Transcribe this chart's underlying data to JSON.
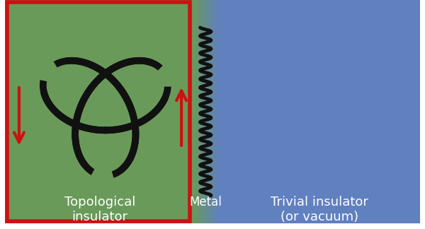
{
  "fig_width": 6.0,
  "fig_height": 3.24,
  "dpi": 100,
  "bg_color": "#ffffff",
  "green_color": "#6a9a5a",
  "blue_color": "#6080c0",
  "mid_green": "#7aaa8a",
  "mid_blue": "#80a0d0",
  "red_border_color": "#cc1111",
  "red_arrow_color": "#cc1111",
  "black_line_color": "#111111",
  "white_text_color": "#ffffff",
  "label_topo": "Topological\ninsulator",
  "label_metal": "Metal",
  "label_trivial": "Trivial insulator\n(or vacuum)",
  "label_fontsize": 13
}
